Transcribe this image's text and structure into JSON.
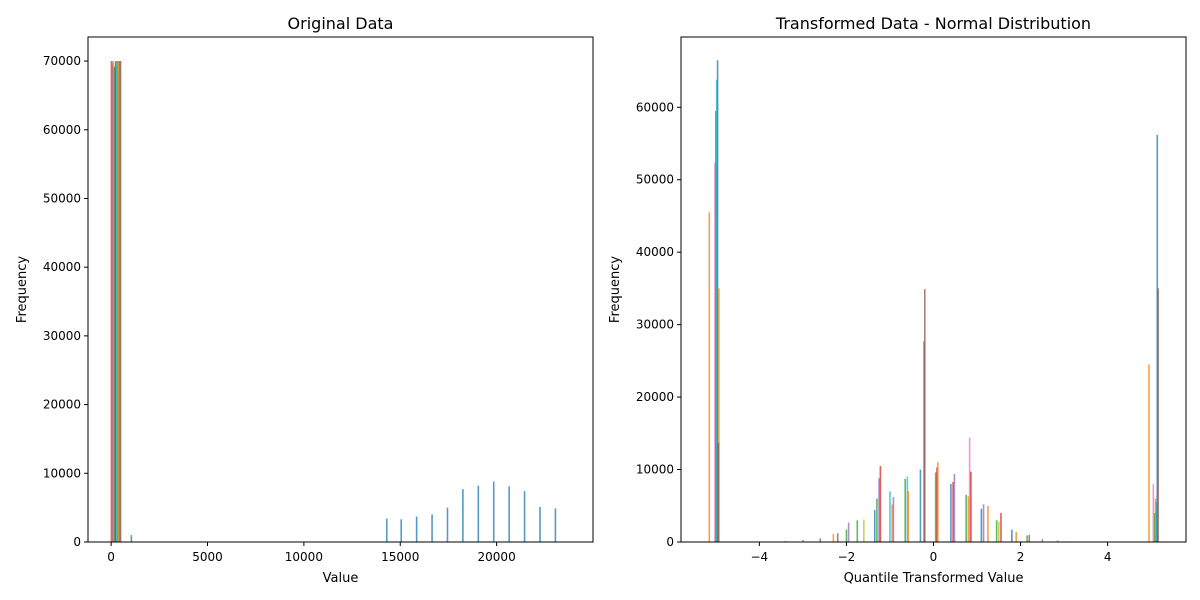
{
  "chart_data": [
    {
      "type": "bar",
      "title": "Original Data",
      "xlabel": "Value",
      "ylabel": "Frequency",
      "xlim": [
        -1200,
        25000
      ],
      "ylim": [
        0,
        73500
      ],
      "xticks": [
        0,
        5000,
        10000,
        15000,
        20000
      ],
      "yticks": [
        0,
        10000,
        20000,
        30000,
        40000,
        50000,
        60000,
        70000
      ],
      "grid": false,
      "colors": [
        "#1f77b4",
        "#ff7f0e",
        "#2ca02c",
        "#d62728",
        "#9467bd",
        "#8c564b",
        "#e377c2",
        "#7f7f7f",
        "#bcbd22",
        "#17becf"
      ],
      "bars": [
        {
          "x": 15,
          "height": 70000,
          "color": "#d62728"
        },
        {
          "x": 45,
          "height": 70000,
          "color": "#ff7f0e"
        },
        {
          "x": 75,
          "height": 69500,
          "color": "#8c564b"
        },
        {
          "x": 105,
          "height": 70000,
          "color": "#e377c2"
        },
        {
          "x": 135,
          "height": 69800,
          "color": "#bcbd22"
        },
        {
          "x": 165,
          "height": 69000,
          "color": "#9467bd"
        },
        {
          "x": 200,
          "height": 69200,
          "color": "#2ca02c"
        },
        {
          "x": 240,
          "height": 70000,
          "color": "#d62728"
        },
        {
          "x": 290,
          "height": 70000,
          "color": "#17becf"
        },
        {
          "x": 340,
          "height": 70000,
          "color": "#7f7f7f"
        },
        {
          "x": 390,
          "height": 70000,
          "color": "#ff7f0e"
        },
        {
          "x": 440,
          "height": 70000,
          "color": "#2ca02c"
        },
        {
          "x": 490,
          "height": 70000,
          "color": "#8c564b"
        },
        {
          "x": 1050,
          "height": 1000,
          "color": "#1f77b4"
        },
        {
          "x": 14300,
          "height": 3400,
          "color": "#1f77b4"
        },
        {
          "x": 15050,
          "height": 3300,
          "color": "#1f77b4"
        },
        {
          "x": 15850,
          "height": 3700,
          "color": "#1f77b4"
        },
        {
          "x": 16650,
          "height": 4000,
          "color": "#1f77b4"
        },
        {
          "x": 17450,
          "height": 5000,
          "color": "#1f77b4"
        },
        {
          "x": 18250,
          "height": 7700,
          "color": "#1f77b4"
        },
        {
          "x": 19050,
          "height": 8200,
          "color": "#1f77b4"
        },
        {
          "x": 19850,
          "height": 8800,
          "color": "#1f77b4"
        },
        {
          "x": 20650,
          "height": 8100,
          "color": "#1f77b4"
        },
        {
          "x": 21450,
          "height": 7400,
          "color": "#1f77b4"
        },
        {
          "x": 22250,
          "height": 5100,
          "color": "#1f77b4"
        },
        {
          "x": 23050,
          "height": 4900,
          "color": "#1f77b4"
        }
      ]
    },
    {
      "type": "bar",
      "title": "Transformed Data - Normal Distribution",
      "xlabel": "Quantile Transformed Value",
      "ylabel": "Frequency",
      "xlim": [
        -5.8,
        5.8
      ],
      "ylim": [
        0,
        69700
      ],
      "xticks": [
        -4,
        -2,
        0,
        2,
        4
      ],
      "yticks": [
        0,
        10000,
        20000,
        30000,
        40000,
        50000,
        60000
      ],
      "grid": false,
      "colors": [
        "#1f77b4",
        "#ff7f0e",
        "#2ca02c",
        "#d62728",
        "#9467bd",
        "#8c564b",
        "#e377c2",
        "#7f7f7f",
        "#bcbd22",
        "#17becf"
      ],
      "bars": [
        {
          "x": -5.15,
          "height": 45500,
          "color": "#ff7f0e"
        },
        {
          "x": -5.02,
          "height": 52300,
          "color": "#e377c2"
        },
        {
          "x": -5.0,
          "height": 59500,
          "color": "#2ca02c"
        },
        {
          "x": -4.98,
          "height": 63800,
          "color": "#17becf"
        },
        {
          "x": -4.96,
          "height": 66500,
          "color": "#1f77b4"
        },
        {
          "x": -4.93,
          "height": 35000,
          "color": "#ff7f0e"
        },
        {
          "x": -4.94,
          "height": 13700,
          "color": "#8c564b"
        },
        {
          "x": -3.4,
          "height": 150,
          "color": "#7f7f7f"
        },
        {
          "x": -3.0,
          "height": 300,
          "color": "#9467bd"
        },
        {
          "x": -2.6,
          "height": 500,
          "color": "#8c564b"
        },
        {
          "x": -2.3,
          "height": 1100,
          "color": "#ff7f0e"
        },
        {
          "x": -2.2,
          "height": 1200,
          "color": "#8c564b"
        },
        {
          "x": -2.0,
          "height": 1700,
          "color": "#2ca02c"
        },
        {
          "x": -1.95,
          "height": 2700,
          "color": "#9467bd"
        },
        {
          "x": -1.75,
          "height": 3000,
          "color": "#2ca02c"
        },
        {
          "x": -1.6,
          "height": 3100,
          "color": "#bcbd22"
        },
        {
          "x": -1.35,
          "height": 4400,
          "color": "#1f77b4"
        },
        {
          "x": -1.3,
          "height": 6000,
          "color": "#2ca02c"
        },
        {
          "x": -1.25,
          "height": 8800,
          "color": "#9467bd"
        },
        {
          "x": -1.22,
          "height": 10500,
          "color": "#d62728"
        },
        {
          "x": -1.0,
          "height": 7000,
          "color": "#17becf"
        },
        {
          "x": -0.95,
          "height": 5200,
          "color": "#ff7f0e"
        },
        {
          "x": -0.92,
          "height": 6200,
          "color": "#9467bd"
        },
        {
          "x": -0.65,
          "height": 8700,
          "color": "#2ca02c"
        },
        {
          "x": -0.6,
          "height": 9000,
          "color": "#17becf"
        },
        {
          "x": -0.58,
          "height": 7000,
          "color": "#ff7f0e"
        },
        {
          "x": -0.3,
          "height": 10000,
          "color": "#1f77b4"
        },
        {
          "x": -0.22,
          "height": 27700,
          "color": "#9467bd"
        },
        {
          "x": -0.2,
          "height": 34900,
          "color": "#8c564b"
        },
        {
          "x": 0.05,
          "height": 9600,
          "color": "#2ca02c"
        },
        {
          "x": 0.08,
          "height": 10300,
          "color": "#d62728"
        },
        {
          "x": 0.1,
          "height": 11000,
          "color": "#ff7f0e"
        },
        {
          "x": 0.4,
          "height": 8000,
          "color": "#1f77b4"
        },
        {
          "x": 0.45,
          "height": 8300,
          "color": "#d62728"
        },
        {
          "x": 0.48,
          "height": 9400,
          "color": "#9467bd"
        },
        {
          "x": 0.75,
          "height": 6500,
          "color": "#2ca02c"
        },
        {
          "x": 0.8,
          "height": 6300,
          "color": "#ff7f0e"
        },
        {
          "x": 0.83,
          "height": 14400,
          "color": "#e377c2"
        },
        {
          "x": 0.86,
          "height": 9700,
          "color": "#d62728"
        },
        {
          "x": 1.1,
          "height": 4600,
          "color": "#1f77b4"
        },
        {
          "x": 1.15,
          "height": 5200,
          "color": "#9467bd"
        },
        {
          "x": 1.25,
          "height": 5000,
          "color": "#ff7f0e"
        },
        {
          "x": 1.45,
          "height": 3000,
          "color": "#2ca02c"
        },
        {
          "x": 1.5,
          "height": 2800,
          "color": "#bcbd22"
        },
        {
          "x": 1.55,
          "height": 4000,
          "color": "#d62728"
        },
        {
          "x": 1.8,
          "height": 1700,
          "color": "#1f77b4"
        },
        {
          "x": 1.9,
          "height": 1400,
          "color": "#ff7f0e"
        },
        {
          "x": 2.15,
          "height": 900,
          "color": "#2ca02c"
        },
        {
          "x": 2.2,
          "height": 1000,
          "color": "#8c564b"
        },
        {
          "x": 2.5,
          "height": 400,
          "color": "#9467bd"
        },
        {
          "x": 2.85,
          "height": 200,
          "color": "#7f7f7f"
        },
        {
          "x": 3.1,
          "height": 100,
          "color": "#bcbd22"
        },
        {
          "x": 4.95,
          "height": 24500,
          "color": "#ff7f0e"
        },
        {
          "x": 5.05,
          "height": 8000,
          "color": "#e377c2"
        },
        {
          "x": 5.08,
          "height": 4000,
          "color": "#2ca02c"
        },
        {
          "x": 5.1,
          "height": 6000,
          "color": "#ff7f0e"
        },
        {
          "x": 5.12,
          "height": 5500,
          "color": "#17becf"
        },
        {
          "x": 5.14,
          "height": 56200,
          "color": "#1f77b4"
        },
        {
          "x": 5.16,
          "height": 35000,
          "color": "#8c564b"
        }
      ]
    }
  ]
}
